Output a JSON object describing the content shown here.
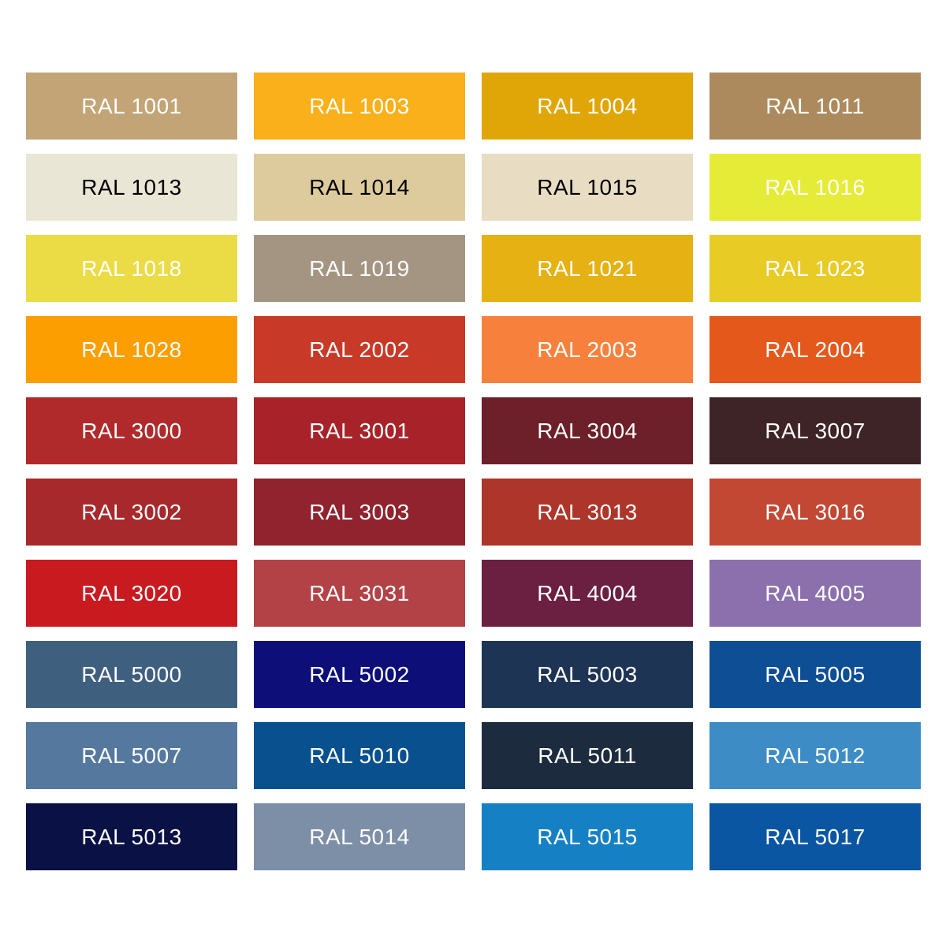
{
  "page": {
    "background": "#FFFFFF",
    "grid_columns": 4,
    "grid_rows": 10
  },
  "swatches": [
    {
      "label": "RAL 1001",
      "color": "#C2A476",
      "text_color": "#FFFFFF"
    },
    {
      "label": "RAL 1003",
      "color": "#F9B01B",
      "text_color": "#FFFFFF"
    },
    {
      "label": "RAL 1004",
      "color": "#E0A608",
      "text_color": "#FFFFFF"
    },
    {
      "label": "RAL 1011",
      "color": "#AC8A5D",
      "text_color": "#FFFFFF"
    },
    {
      "label": "RAL 1013",
      "color": "#EAE6D5",
      "text_color": "#000000"
    },
    {
      "label": "RAL 1014",
      "color": "#DDCB9E",
      "text_color": "#000000"
    },
    {
      "label": "RAL 1015",
      "color": "#E8DDC3",
      "text_color": "#000000"
    },
    {
      "label": "RAL 1016",
      "color": "#E6EB37",
      "text_color": "#FFFFFF"
    },
    {
      "label": "RAL 1018",
      "color": "#EBDC45",
      "text_color": "#FFFFFF"
    },
    {
      "label": "RAL 1019",
      "color": "#A49582",
      "text_color": "#FFFFFF"
    },
    {
      "label": "RAL 1021",
      "color": "#E6B112",
      "text_color": "#FFFFFF"
    },
    {
      "label": "RAL 1023",
      "color": "#E9CB26",
      "text_color": "#FFFFFF"
    },
    {
      "label": "RAL 1028",
      "color": "#FC9E00",
      "text_color": "#FFFFFF"
    },
    {
      "label": "RAL 2002",
      "color": "#C83927",
      "text_color": "#FFFFFF"
    },
    {
      "label": "RAL 2003",
      "color": "#F7813C",
      "text_color": "#FFFFFF"
    },
    {
      "label": "RAL 2004",
      "color": "#E4581C",
      "text_color": "#FFFFFF"
    },
    {
      "label": "RAL 3000",
      "color": "#B02A2B",
      "text_color": "#FFFFFF"
    },
    {
      "label": "RAL 3001",
      "color": "#A72329",
      "text_color": "#FFFFFF"
    },
    {
      "label": "RAL 3004",
      "color": "#6D2029",
      "text_color": "#FFFFFF"
    },
    {
      "label": "RAL 3007",
      "color": "#3E2427",
      "text_color": "#FFFFFF"
    },
    {
      "label": "RAL 3002",
      "color": "#A8292B",
      "text_color": "#FFFFFF"
    },
    {
      "label": "RAL 3003",
      "color": "#90232E",
      "text_color": "#FFFFFF"
    },
    {
      "label": "RAL 3013",
      "color": "#AE3529",
      "text_color": "#FFFFFF"
    },
    {
      "label": "RAL 3016",
      "color": "#C24834",
      "text_color": "#FFFFFF"
    },
    {
      "label": "RAL 3020",
      "color": "#C91A1F",
      "text_color": "#FFFFFF"
    },
    {
      "label": "RAL 3031",
      "color": "#B34247",
      "text_color": "#FFFFFF"
    },
    {
      "label": "RAL 4004",
      "color": "#6C2041",
      "text_color": "#FFFFFF"
    },
    {
      "label": "RAL 4005",
      "color": "#8B70AD",
      "text_color": "#FFFFFF"
    },
    {
      "label": "RAL 5000",
      "color": "#3F5F7E",
      "text_color": "#FFFFFF"
    },
    {
      "label": "RAL 5002",
      "color": "#0D0E78",
      "text_color": "#FFFFFF"
    },
    {
      "label": "RAL 5003",
      "color": "#1E3455",
      "text_color": "#FFFFFF"
    },
    {
      "label": "RAL 5005",
      "color": "#0E4E95",
      "text_color": "#FFFFFF"
    },
    {
      "label": "RAL 5007",
      "color": "#55789F",
      "text_color": "#FFFFFF"
    },
    {
      "label": "RAL 5010",
      "color": "#08508E",
      "text_color": "#FFFFFF"
    },
    {
      "label": "RAL 5011",
      "color": "#1D2B3F",
      "text_color": "#FFFFFF"
    },
    {
      "label": "RAL 5012",
      "color": "#3D8CC5",
      "text_color": "#FFFFFF"
    },
    {
      "label": "RAL 5013",
      "color": "#0A1145",
      "text_color": "#FFFFFF"
    },
    {
      "label": "RAL 5014",
      "color": "#7D8EA7",
      "text_color": "#FFFFFF"
    },
    {
      "label": "RAL 5015",
      "color": "#1581C4",
      "text_color": "#FFFFFF"
    },
    {
      "label": "RAL 5017",
      "color": "#0B56A3",
      "text_color": "#FFFFFF"
    }
  ]
}
